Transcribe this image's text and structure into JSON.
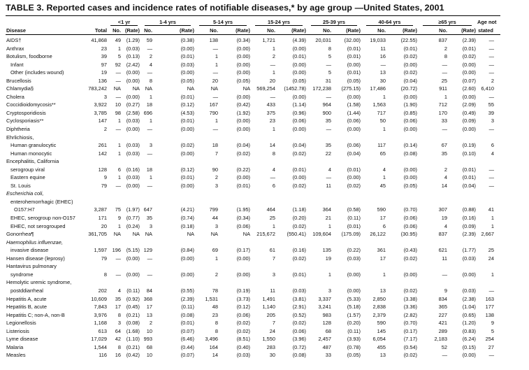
{
  "title": "TABLE 3. Reported cases and incidence rates of notifiable diseases,* by age group —United States, 2001",
  "groups": [
    "<1 yr",
    "1-4 yrs",
    "5-14 yrs",
    "15-24 yrs",
    "25-39 yrs",
    "40-64 yrs",
    "≥65 yrs"
  ],
  "age_not": "Age not",
  "headers": {
    "disease": "Disease",
    "total": "Total",
    "no": "No.",
    "rate": "(Rate)",
    "stated": "stated"
  },
  "rows": [
    {
      "name": "AIDS†",
      "v": [
        "41,868",
        "49",
        "(1.29)",
        "59",
        "(0.38)",
        "138",
        "(0.34)",
        "1,721",
        "(4.39)",
        "20,031",
        "(32.00)",
        "19,033",
        "(22.55)",
        "837",
        "(2.39)",
        "—"
      ]
    },
    {
      "name": "Anthrax",
      "v": [
        "23",
        "1",
        "(0.03)",
        "—",
        "(0.00)",
        "—",
        "(0.00)",
        "1",
        "(0.00)",
        "8",
        "(0.01)",
        "11",
        "(0.01)",
        "2",
        "(0.01)",
        "—"
      ]
    },
    {
      "name": "Botulism, foodborne",
      "v": [
        "39",
        "5",
        "(0.13)",
        "2",
        "(0.01)",
        "1",
        "(0.00)",
        "2",
        "(0.01)",
        "5",
        "(0.01)",
        "16",
        "(0.02)",
        "8",
        "(0.02)",
        "—"
      ]
    },
    {
      "name": "Infant",
      "indent": 1,
      "v": [
        "97",
        "92",
        "(2.42)",
        "4",
        "(0.03)",
        "1",
        "(0.00)",
        "—",
        "(0.00)",
        "—",
        "(0.00)",
        "—",
        "(0.00)",
        "—",
        "(0.00)",
        "—"
      ]
    },
    {
      "name": "Other (includes wound)",
      "indent": 1,
      "v": [
        "19",
        "—",
        "(0.00)",
        "—",
        "(0.00)",
        "—",
        "(0.00)",
        "1",
        "(0.00)",
        "5",
        "(0.01)",
        "13",
        "(0.02)",
        "—",
        "(0.00)",
        "—"
      ]
    },
    {
      "name": "Brucellosis",
      "v": [
        "136",
        "—",
        "(0.00)",
        "8",
        "(0.05)",
        "20",
        "(0.05)",
        "20",
        "(0.05)",
        "31",
        "(0.05)",
        "30",
        "(0.04)",
        "25",
        "(0.07)",
        "2"
      ]
    },
    {
      "name": "Chlamydia§",
      "v": [
        "783,242",
        "NA",
        "NA",
        "NA",
        "NA",
        "NA",
        "NA",
        "569,254",
        "(1452.78)",
        "172,238",
        "(275.15)",
        "17,486",
        "(20.72)",
        "911",
        "(2.60)",
        "6,410"
      ]
    },
    {
      "name": "Cholera",
      "v": [
        "3",
        "—",
        "(0.00)",
        "1",
        "(0.01)",
        "—",
        "(0.00)",
        "—",
        "(0.00)",
        "—",
        "(0.00)",
        "1",
        "(0.00)",
        "1",
        "(0.00)",
        "—"
      ]
    },
    {
      "name": "Coccidioidomycosis**",
      "v": [
        "3,922",
        "10",
        "(0.27)",
        "18",
        "(0.12)",
        "167",
        "(0.42)",
        "433",
        "(1.14)",
        "964",
        "(1.58)",
        "1,563",
        "(1.90)",
        "712",
        "(2.09)",
        "55"
      ]
    },
    {
      "name": "Cryptosporidiosis",
      "v": [
        "3,785",
        "98",
        "(2.58)",
        "696",
        "(4.53)",
        "790",
        "(1.92)",
        "375",
        "(0.96)",
        "900",
        "(1.44)",
        "717",
        "(0.85)",
        "170",
        "(0.49)",
        "39"
      ]
    },
    {
      "name": "Cyclosporiasis**",
      "v": [
        "147",
        "1",
        "(0.03)",
        "1",
        "(0.01)",
        "1",
        "(0.00)",
        "23",
        "(0.06)",
        "35",
        "(0.06)",
        "50",
        "(0.06)",
        "33",
        "(0.09)",
        "3"
      ]
    },
    {
      "name": "Diphtheria",
      "v": [
        "2",
        "—",
        "(0.00)",
        "—",
        "(0.00)",
        "—",
        "(0.00)",
        "1",
        "(0.00)",
        "—",
        "(0.00)",
        "1",
        "(0.00)",
        "—",
        "(0.00)",
        "—"
      ]
    },
    {
      "name": "Ehrlichiosis,",
      "v": []
    },
    {
      "name": "Human granulocytic",
      "indent": 1,
      "v": [
        "261",
        "1",
        "(0.03)",
        "3",
        "(0.02)",
        "18",
        "(0.04)",
        "14",
        "(0.04)",
        "35",
        "(0.06)",
        "117",
        "(0.14)",
        "67",
        "(0.19)",
        "6"
      ]
    },
    {
      "name": "Human  monocytic",
      "indent": 1,
      "v": [
        "142",
        "1",
        "(0.03)",
        "—",
        "(0.00)",
        "7",
        "(0.02)",
        "8",
        "(0.02)",
        "22",
        "(0.04)",
        "65",
        "(0.08)",
        "35",
        "(0.10)",
        "4"
      ]
    },
    {
      "name": "Encephalitis, California",
      "v": []
    },
    {
      "name": "serogroup viral",
      "indent": 1,
      "v": [
        "128",
        "6",
        "(0.16)",
        "18",
        "(0.12)",
        "90",
        "(0.22)",
        "4",
        "(0.01)",
        "4",
        "(0.01)",
        "4",
        "(0.00)",
        "2",
        "(0.01)",
        "—"
      ]
    },
    {
      "name": "Eastern equine",
      "indent": 1,
      "v": [
        "9",
        "1",
        "(0.03)",
        "1",
        "(0.01)",
        "2",
        "(0.00)",
        "—",
        "(0.00)",
        "—",
        "(0.00)",
        "1",
        "(0.00)",
        "4",
        "(0.01)",
        "—"
      ]
    },
    {
      "name": "St. Louis",
      "indent": 1,
      "v": [
        "79",
        "—",
        "(0.00)",
        "—",
        "(0.00)",
        "3",
        "(0.01)",
        "6",
        "(0.02)",
        "11",
        "(0.02)",
        "45",
        "(0.05)",
        "14",
        "(0.04)",
        "—"
      ]
    },
    {
      "name": "Escherichia coli,",
      "italic": true,
      "v": []
    },
    {
      "name": "enterohemorrhagic (EHEC)",
      "indent": 1,
      "v": []
    },
    {
      "name": "O157:H7",
      "indent": 2,
      "v": [
        "3,287",
        "75",
        "(1.97)",
        "647",
        "(4.21)",
        "799",
        "(1.95)",
        "464",
        "(1.18)",
        "364",
        "(0.58)",
        "590",
        "(0.70)",
        "307",
        "(0.88)",
        "41"
      ]
    },
    {
      "name": "EHEC, serogroup non-O157",
      "indent": 1,
      "v": [
        "171",
        "9",
        "(0.77)",
        "35",
        "(0.74)",
        "44",
        "(0.34)",
        "25",
        "(0.20)",
        "21",
        "(0.11)",
        "17",
        "(0.06)",
        "19",
        "(0.16)",
        "1"
      ]
    },
    {
      "name": "EHEC, not serogrouped",
      "indent": 1,
      "v": [
        "20",
        "1",
        "(0.24)",
        "3",
        "(0.18)",
        "3",
        "(0.06)",
        "1",
        "(0.02)",
        "1",
        "(0.01)",
        "6",
        "(0.06)",
        "4",
        "(0.09)",
        "1"
      ]
    },
    {
      "name": "Gonorrhea¶",
      "v": [
        "361,705",
        "NA",
        "NA",
        "NA",
        "NA",
        "NA",
        "NA",
        "215,672",
        "(550.41)",
        "109,604",
        "(175.09)",
        "26,122",
        "(30.95)",
        "837",
        "(2.39)",
        "2,667"
      ]
    },
    {
      "name": "Haemophilus influenzae,",
      "italic": true,
      "v": []
    },
    {
      "name": "invasive disease",
      "indent": 1,
      "v": [
        "1,597",
        "196",
        "(5.15)",
        "129",
        "(0.84)",
        "69",
        "(0.17)",
        "61",
        "(0.16)",
        "135",
        "(0.22)",
        "361",
        "(0.43)",
        "621",
        "(1.77)",
        "25"
      ]
    },
    {
      "name": "Hansen disease (leprosy)",
      "v": [
        "79",
        "—",
        "(0.00)",
        "—",
        "(0.00)",
        "1",
        "(0.00)",
        "7",
        "(0.02)",
        "19",
        "(0.03)",
        "17",
        "(0.02)",
        "11",
        "(0.03)",
        "24"
      ]
    },
    {
      "name": "Hantavirus pulmonary",
      "v": []
    },
    {
      "name": "syndrome",
      "indent": 1,
      "v": [
        "8",
        "—",
        "(0.00)",
        "—",
        "(0.00)",
        "2",
        "(0.00)",
        "3",
        "(0.01)",
        "1",
        "(0.00)",
        "1",
        "(0.00)",
        "—",
        "(0.00)",
        "1"
      ]
    },
    {
      "name": "Hemolytic uremic syndrome,",
      "v": []
    },
    {
      "name": "postddiarrheal",
      "indent": 1,
      "v": [
        "202",
        "4",
        "(0.11)",
        "84",
        "(0.55)",
        "78",
        "(0.19)",
        "11",
        "(0.03)",
        "3",
        "(0.00)",
        "13",
        "(0.02)",
        "9",
        "(0.03)",
        "—"
      ]
    },
    {
      "name": "Hepatitis A, acute",
      "v": [
        "10,609",
        "35",
        "(0.92)",
        "368",
        "(2.39)",
        "1,531",
        "(3.73)",
        "1,491",
        "(3.81)",
        "3,337",
        "(5.33)",
        "2,850",
        "(3.38)",
        "834",
        "(2.38)",
        "163"
      ]
    },
    {
      "name": "Hepatitis B, acute",
      "v": [
        "7,843",
        "17",
        "(0.45)",
        "17",
        "(0.11)",
        "48",
        "(0.12)",
        "1,140",
        "(2.91)",
        "3,241",
        "(5.18)",
        "2,838",
        "(3.36)",
        "365",
        "(1.04)",
        "177"
      ]
    },
    {
      "name": "Hepatitis C; non-A, non-B",
      "v": [
        "3,976",
        "8",
        "(0.21)",
        "13",
        "(0.08)",
        "23",
        "(0.06)",
        "205",
        "(0.52)",
        "983",
        "(1.57)",
        "2,379",
        "(2.82)",
        "227",
        "(0.65)",
        "138"
      ]
    },
    {
      "name": "Legionellosis",
      "v": [
        "1,168",
        "3",
        "(0.08)",
        "2",
        "(0.01)",
        "8",
        "(0.02)",
        "7",
        "(0.02)",
        "128",
        "(0.20)",
        "590",
        "(0.70)",
        "421",
        "(1.20)",
        "9"
      ]
    },
    {
      "name": "Listeriosis",
      "v": [
        "613",
        "64",
        "(1.68)",
        "10",
        "(0.07)",
        "8",
        "(0.02)",
        "24",
        "(0.06)",
        "68",
        "(0.11)",
        "145",
        "(0.17)",
        "289",
        "(0.83)",
        "5"
      ]
    },
    {
      "name": "Lyme disease",
      "v": [
        "17,029",
        "42",
        "(1.10)",
        "993",
        "(6.46)",
        "3,496",
        "(8.51)",
        "1,550",
        "(3.96)",
        "2,457",
        "(3.93)",
        "6,054",
        "(7.17)",
        "2,183",
        "(6.24)",
        "254"
      ]
    },
    {
      "name": "Malaria",
      "v": [
        "1,544",
        "8",
        "(0.21)",
        "68",
        "(0.44)",
        "164",
        "(0.40)",
        "283",
        "(0.72)",
        "487",
        "(0.78)",
        "455",
        "(0.54)",
        "52",
        "(0.15)",
        "27"
      ]
    },
    {
      "name": "Measles",
      "v": [
        "116",
        "16",
        "(0.42)",
        "10",
        "(0.07)",
        "14",
        "(0.03)",
        "30",
        "(0.08)",
        "33",
        "(0.05)",
        "13",
        "(0.02)",
        "—",
        "(0.00)",
        "—"
      ]
    }
  ]
}
